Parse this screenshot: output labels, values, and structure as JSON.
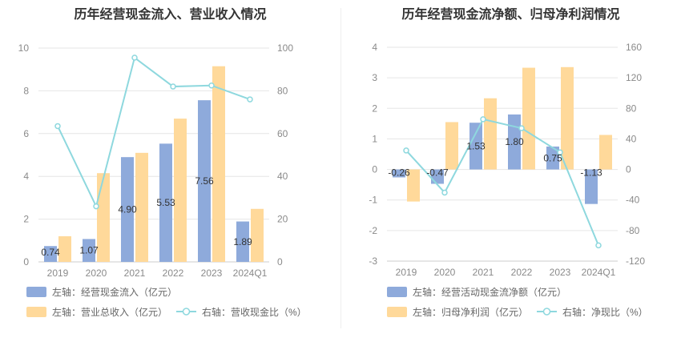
{
  "chart_data": [
    {
      "type": "bar",
      "title": "历年经营现金流入、营业收入情况",
      "categories": [
        "2019",
        "2020",
        "2021",
        "2022",
        "2023",
        "2024Q1"
      ],
      "left_axis": {
        "ylim": [
          0,
          10
        ],
        "ticks": [
          "0",
          "2",
          "4",
          "6",
          "8",
          "10"
        ]
      },
      "right_axis": {
        "ylim": [
          0,
          100
        ],
        "ticks": [
          "0",
          "20",
          "40",
          "60",
          "80",
          "100"
        ]
      },
      "series": [
        {
          "name": "左轴：经营现金流入（亿元）",
          "type": "bar",
          "axis": "left",
          "color": "#8eaadb",
          "values": [
            0.74,
            1.07,
            4.9,
            5.53,
            7.56,
            1.89
          ],
          "labels": [
            "0.74",
            "1.07",
            "4.90",
            "5.53",
            "7.56",
            "1.89"
          ]
        },
        {
          "name": "左轴：营业总收入（亿元）",
          "type": "bar",
          "axis": "left",
          "color": "#ffd99a",
          "values": [
            1.2,
            4.15,
            5.1,
            6.7,
            9.15,
            2.48
          ]
        },
        {
          "name": "右轴：营收现金比（%）",
          "type": "line",
          "axis": "right",
          "color": "#8ed8de",
          "values": [
            63.5,
            26,
            95.5,
            82,
            82.5,
            76
          ]
        }
      ]
    },
    {
      "type": "bar",
      "title": "历年经营现金流净额、归母净利润情况",
      "categories": [
        "2019",
        "2020",
        "2021",
        "2022",
        "2023",
        "2024Q1"
      ],
      "left_axis": {
        "ylim": [
          -3,
          4
        ],
        "ticks": [
          "-3",
          "-2",
          "-1",
          "0",
          "1",
          "2",
          "3",
          "4"
        ]
      },
      "right_axis": {
        "ylim": [
          -120,
          160
        ],
        "ticks": [
          "-120",
          "-80",
          "-40",
          "0",
          "40",
          "80",
          "120",
          "160"
        ]
      },
      "series": [
        {
          "name": "左轴：经营活动现金流净额（亿元）",
          "type": "bar",
          "axis": "left",
          "color": "#8eaadb",
          "values": [
            -0.26,
            -0.47,
            1.53,
            1.8,
            0.75,
            -1.13
          ],
          "labels": [
            "-0.26",
            "-0.47",
            "1.53",
            "1.80",
            "0.75",
            "-1.13"
          ]
        },
        {
          "name": "左轴：归母净利润（亿元）",
          "type": "bar",
          "axis": "left",
          "color": "#ffd99a",
          "values": [
            -1.05,
            1.55,
            2.33,
            3.33,
            3.35,
            1.13
          ]
        },
        {
          "name": "右轴：净现比（%）",
          "type": "line",
          "axis": "right",
          "color": "#8ed8de",
          "values": [
            24.8,
            -30.3,
            65.7,
            54,
            22.4,
            -99.4
          ]
        }
      ]
    }
  ]
}
